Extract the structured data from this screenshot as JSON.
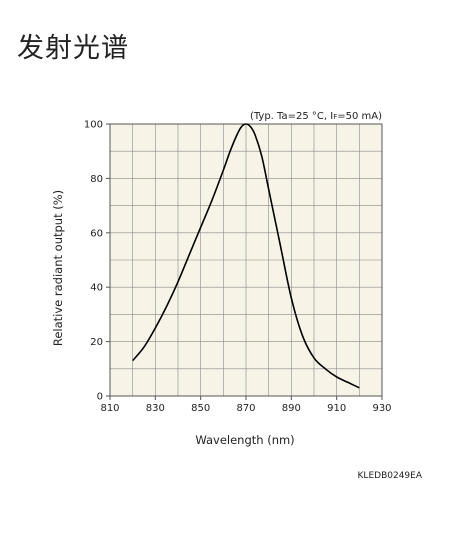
{
  "page": {
    "title": "发射光谱"
  },
  "chart_data": {
    "type": "line",
    "conditions_note": "(Typ. Ta=25 °C, I",
    "conditions_note_sub": "F",
    "conditions_note_tail": "=50 mA)",
    "xlabel": "Wavelength (nm)",
    "ylabel": "Relative radiant output (%)",
    "xlim": [
      810,
      930
    ],
    "ylim": [
      0,
      100
    ],
    "x_ticks": [
      810,
      830,
      850,
      870,
      890,
      910,
      930
    ],
    "y_ticks": [
      0,
      20,
      40,
      60,
      80,
      100
    ],
    "x_grid_step": 10,
    "y_grid_step": 10,
    "grid": true,
    "background_color": "#f7f3e6",
    "line_color": "#000000",
    "series": [
      {
        "x": [
          820,
          825,
          830,
          835,
          840,
          845,
          850,
          855,
          860,
          863,
          866,
          868,
          870,
          872,
          874,
          877,
          880,
          885,
          890,
          895,
          900,
          905,
          910,
          915,
          920
        ],
        "y": [
          13,
          18,
          25,
          33,
          42,
          52,
          62,
          72,
          83,
          90,
          96,
          99,
          100,
          99,
          96,
          88,
          76,
          56,
          36,
          22,
          14,
          10,
          7,
          5,
          3
        ]
      }
    ],
    "figure_code": "KLEDB0249EA"
  }
}
